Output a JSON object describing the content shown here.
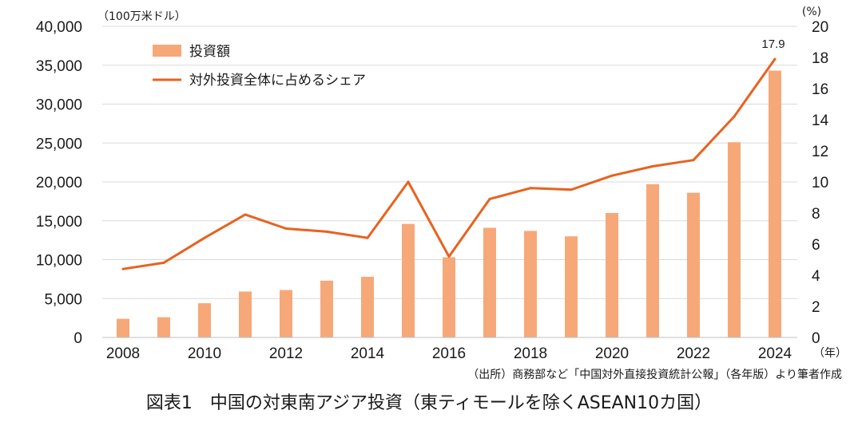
{
  "chart_data": {
    "type": "bar",
    "x": [
      2008,
      2009,
      2010,
      2011,
      2012,
      2013,
      2014,
      2015,
      2016,
      2017,
      2018,
      2019,
      2020,
      2021,
      2022,
      2023,
      2024
    ],
    "x_tick_labels": [
      "2008",
      "2010",
      "2012",
      "2014",
      "2016",
      "2018",
      "2020",
      "2022",
      "2024"
    ],
    "x_unit": "（年）",
    "left_axis": {
      "unit": "（100万米ドル）",
      "ylim": [
        0,
        40000
      ],
      "tick_labels": [
        "0",
        "5,000",
        "10,000",
        "15,000",
        "20,000",
        "25,000",
        "30,000",
        "35,000",
        "40,000"
      ]
    },
    "right_axis": {
      "unit": "(%)",
      "ylim": [
        0,
        20
      ],
      "tick_labels": [
        "0",
        "2",
        "4",
        "6",
        "8",
        "10",
        "12",
        "14",
        "16",
        "18",
        "20"
      ]
    },
    "series": [
      {
        "name": "投資額",
        "type": "bar",
        "axis": "left",
        "color": "#F7A878",
        "values": [
          2400,
          2600,
          4400,
          5900,
          6100,
          7300,
          7800,
          14600,
          10300,
          14100,
          13700,
          13000,
          16000,
          19700,
          18600,
          25100,
          34300
        ]
      },
      {
        "name": "対外投資全体に占めるシェア",
        "type": "line",
        "axis": "right",
        "color": "#E8621F",
        "values": [
          4.4,
          4.8,
          6.4,
          7.9,
          7.0,
          6.8,
          6.4,
          10.0,
          5.2,
          8.9,
          9.6,
          9.5,
          10.4,
          11.0,
          11.4,
          14.2,
          17.9
        ]
      }
    ],
    "annotations": [
      {
        "text": "17.9",
        "x": 2024,
        "series": "対外投資全体に占めるシェア"
      }
    ],
    "grid": true,
    "legend_position": "top-left",
    "source": "（出所）商務部など「中国対外直接投資統計公報」（各年版）より筆者作成",
    "caption": "図表1　中国の対東南アジア投資（東ティモールを除くASEAN10カ国）"
  }
}
